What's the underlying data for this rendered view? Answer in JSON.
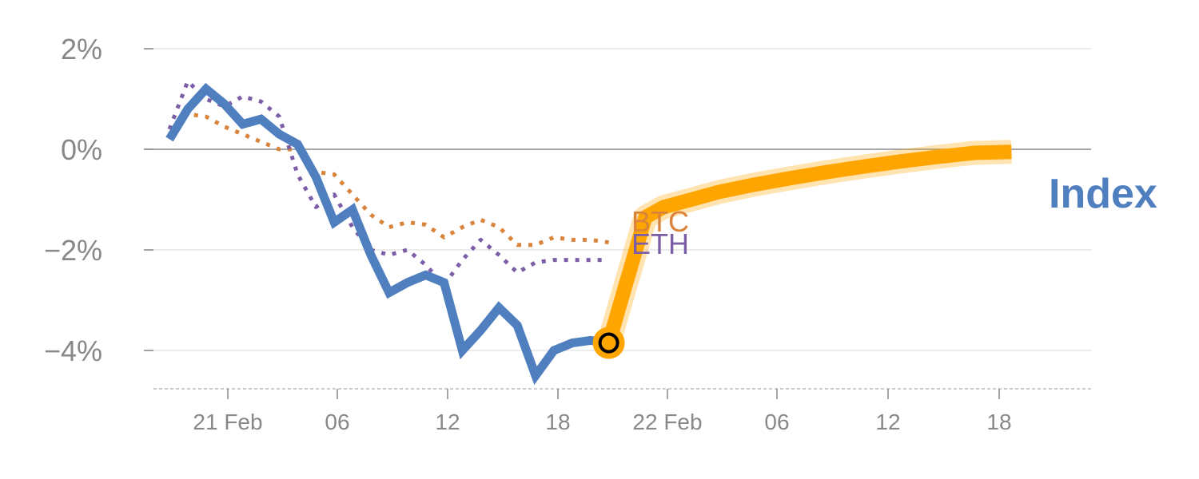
{
  "chart_data": {
    "type": "line",
    "title": "",
    "xlabel": "",
    "ylabel": "",
    "x_tick_labels": [
      "21 Feb",
      "06",
      "12",
      "18",
      "22 Feb",
      "06",
      "12",
      "18"
    ],
    "y_tick_labels": [
      "2%",
      "0%",
      "−2%",
      "−4%"
    ],
    "y_ticks": [
      2,
      0,
      -2,
      -4
    ],
    "ylim": [
      -4.7,
      2.2
    ],
    "xlim": [
      -4.5,
      47
    ],
    "grid": true,
    "series": [
      {
        "name": "BTC",
        "color": "#d9833b",
        "style": "dotted",
        "x": [
          0,
          1,
          2,
          3,
          4,
          5,
          6,
          7,
          8,
          9,
          10,
          11,
          12,
          13,
          14,
          15,
          16,
          17,
          18,
          19,
          20,
          21,
          22,
          23,
          24
        ],
        "y": [
          0.3,
          0.7,
          0.65,
          0.45,
          0.3,
          0.15,
          0.0,
          0.0,
          -0.45,
          -0.5,
          -0.9,
          -1.3,
          -1.55,
          -1.45,
          -1.5,
          -1.75,
          -1.55,
          -1.4,
          -1.55,
          -1.9,
          -1.9,
          -1.75,
          -1.8,
          -1.8,
          -1.85
        ]
      },
      {
        "name": "ETH",
        "color": "#7b5ea7",
        "style": "dotted",
        "x": [
          0,
          1,
          2,
          3,
          4,
          5,
          6,
          7,
          8,
          9,
          10,
          11,
          12,
          13,
          14,
          15,
          16,
          17,
          18,
          19,
          20,
          21,
          22,
          23,
          24
        ],
        "y": [
          0.4,
          1.35,
          1.0,
          0.85,
          1.05,
          0.95,
          0.65,
          -0.5,
          -1.15,
          -0.9,
          -1.55,
          -2.0,
          -2.1,
          -2.0,
          -2.3,
          -2.7,
          -2.2,
          -1.8,
          -2.1,
          -2.45,
          -2.25,
          -2.2,
          -2.2,
          -2.2,
          -2.2
        ]
      },
      {
        "name": "Index",
        "color": "#4f7fbf",
        "style": "solid",
        "x": [
          0,
          1,
          2,
          3,
          4,
          5,
          6,
          7,
          8,
          9,
          10,
          11,
          12,
          13,
          14,
          15,
          16,
          17,
          18,
          19,
          20,
          21,
          22,
          23,
          24
        ],
        "y": [
          0.2,
          0.8,
          1.2,
          0.9,
          0.5,
          0.6,
          0.3,
          0.1,
          -0.55,
          -1.45,
          -1.2,
          -2.1,
          -2.85,
          -2.65,
          -2.5,
          -2.65,
          -4.0,
          -3.6,
          -3.15,
          -3.5,
          -4.5,
          -4.0,
          -3.85,
          -3.8,
          -3.85
        ]
      },
      {
        "name": "Index projection",
        "color": "#ffa500",
        "style": "thick",
        "x": [
          24,
          25,
          26,
          27,
          28,
          30,
          32,
          34,
          36,
          38,
          40,
          42,
          44,
          46
        ],
        "y": [
          -3.85,
          -2.6,
          -1.35,
          -1.15,
          -1.05,
          -0.85,
          -0.7,
          -0.57,
          -0.45,
          -0.34,
          -0.24,
          -0.15,
          -0.07,
          -0.05
        ]
      }
    ],
    "marker": {
      "x": 24,
      "y": -3.85,
      "fill": "#ffa500",
      "stroke": "#000000"
    },
    "labels": {
      "BTC": "BTC",
      "ETH": "ETH",
      "Index": "Index"
    }
  }
}
